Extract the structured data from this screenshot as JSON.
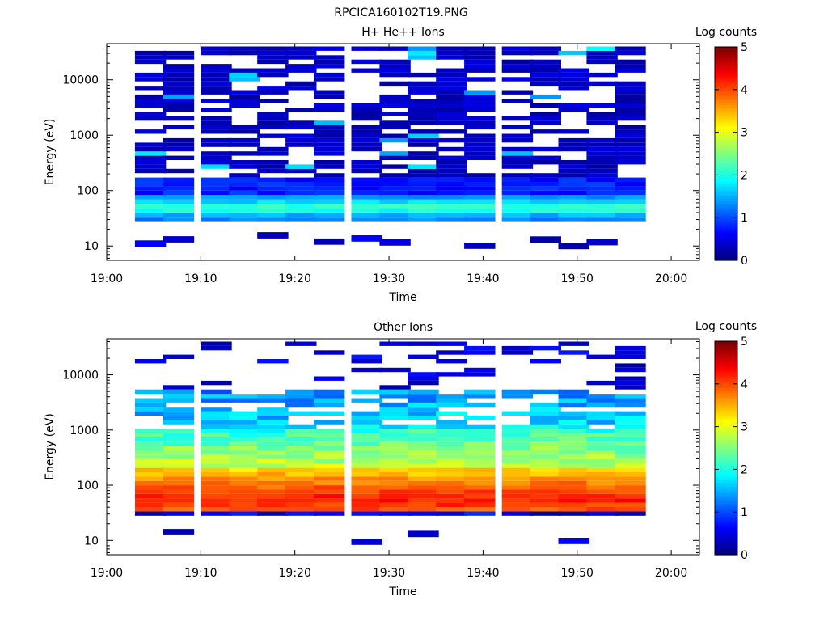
{
  "figure_title": "RPCICA160102T19.PNG",
  "chart_data": [
    {
      "type": "heatmap",
      "title": "H+ He++ Ions",
      "xlabel": "Time",
      "ylabel": "Energy (eV)",
      "xlim": [
        "19:00",
        "20:03"
      ],
      "x_ticks": [
        "19:00",
        "19:10",
        "19:20",
        "19:30",
        "19:40",
        "19:50",
        "20:00"
      ],
      "y_scale": "log",
      "ylim": [
        5.5,
        45000
      ],
      "y_ticks": [
        "10",
        "100",
        "1000",
        "10000"
      ],
      "colorbar": {
        "label": "Log counts",
        "range": [
          0,
          5
        ],
        "ticks": [
          "0",
          "1",
          "2",
          "3",
          "4",
          "5"
        ]
      },
      "time_bins": [
        "19:03",
        "19:06",
        "19:10",
        "19:13",
        "19:16",
        "19:19",
        "19:22",
        "19:26",
        "19:29",
        "19:32",
        "19:35",
        "19:38",
        "19:42",
        "19:45",
        "19:48",
        "19:51",
        "19:54"
      ],
      "profile": "hplus"
    },
    {
      "type": "heatmap",
      "title": "Other Ions",
      "xlabel": "Time",
      "ylabel": "Energy (eV)",
      "xlim": [
        "19:00",
        "20:03"
      ],
      "x_ticks": [
        "19:00",
        "19:10",
        "19:20",
        "19:30",
        "19:40",
        "19:50",
        "20:00"
      ],
      "y_scale": "log",
      "ylim": [
        5.5,
        45000
      ],
      "y_ticks": [
        "10",
        "100",
        "1000",
        "10000"
      ],
      "colorbar": {
        "label": "Log counts",
        "range": [
          0,
          5
        ],
        "ticks": [
          "0",
          "1",
          "2",
          "3",
          "4",
          "5"
        ]
      },
      "time_bins": [
        "19:03",
        "19:06",
        "19:10",
        "19:13",
        "19:16",
        "19:19",
        "19:22",
        "19:26",
        "19:29",
        "19:32",
        "19:35",
        "19:38",
        "19:42",
        "19:45",
        "19:48",
        "19:51",
        "19:54"
      ],
      "profile": "other"
    }
  ]
}
